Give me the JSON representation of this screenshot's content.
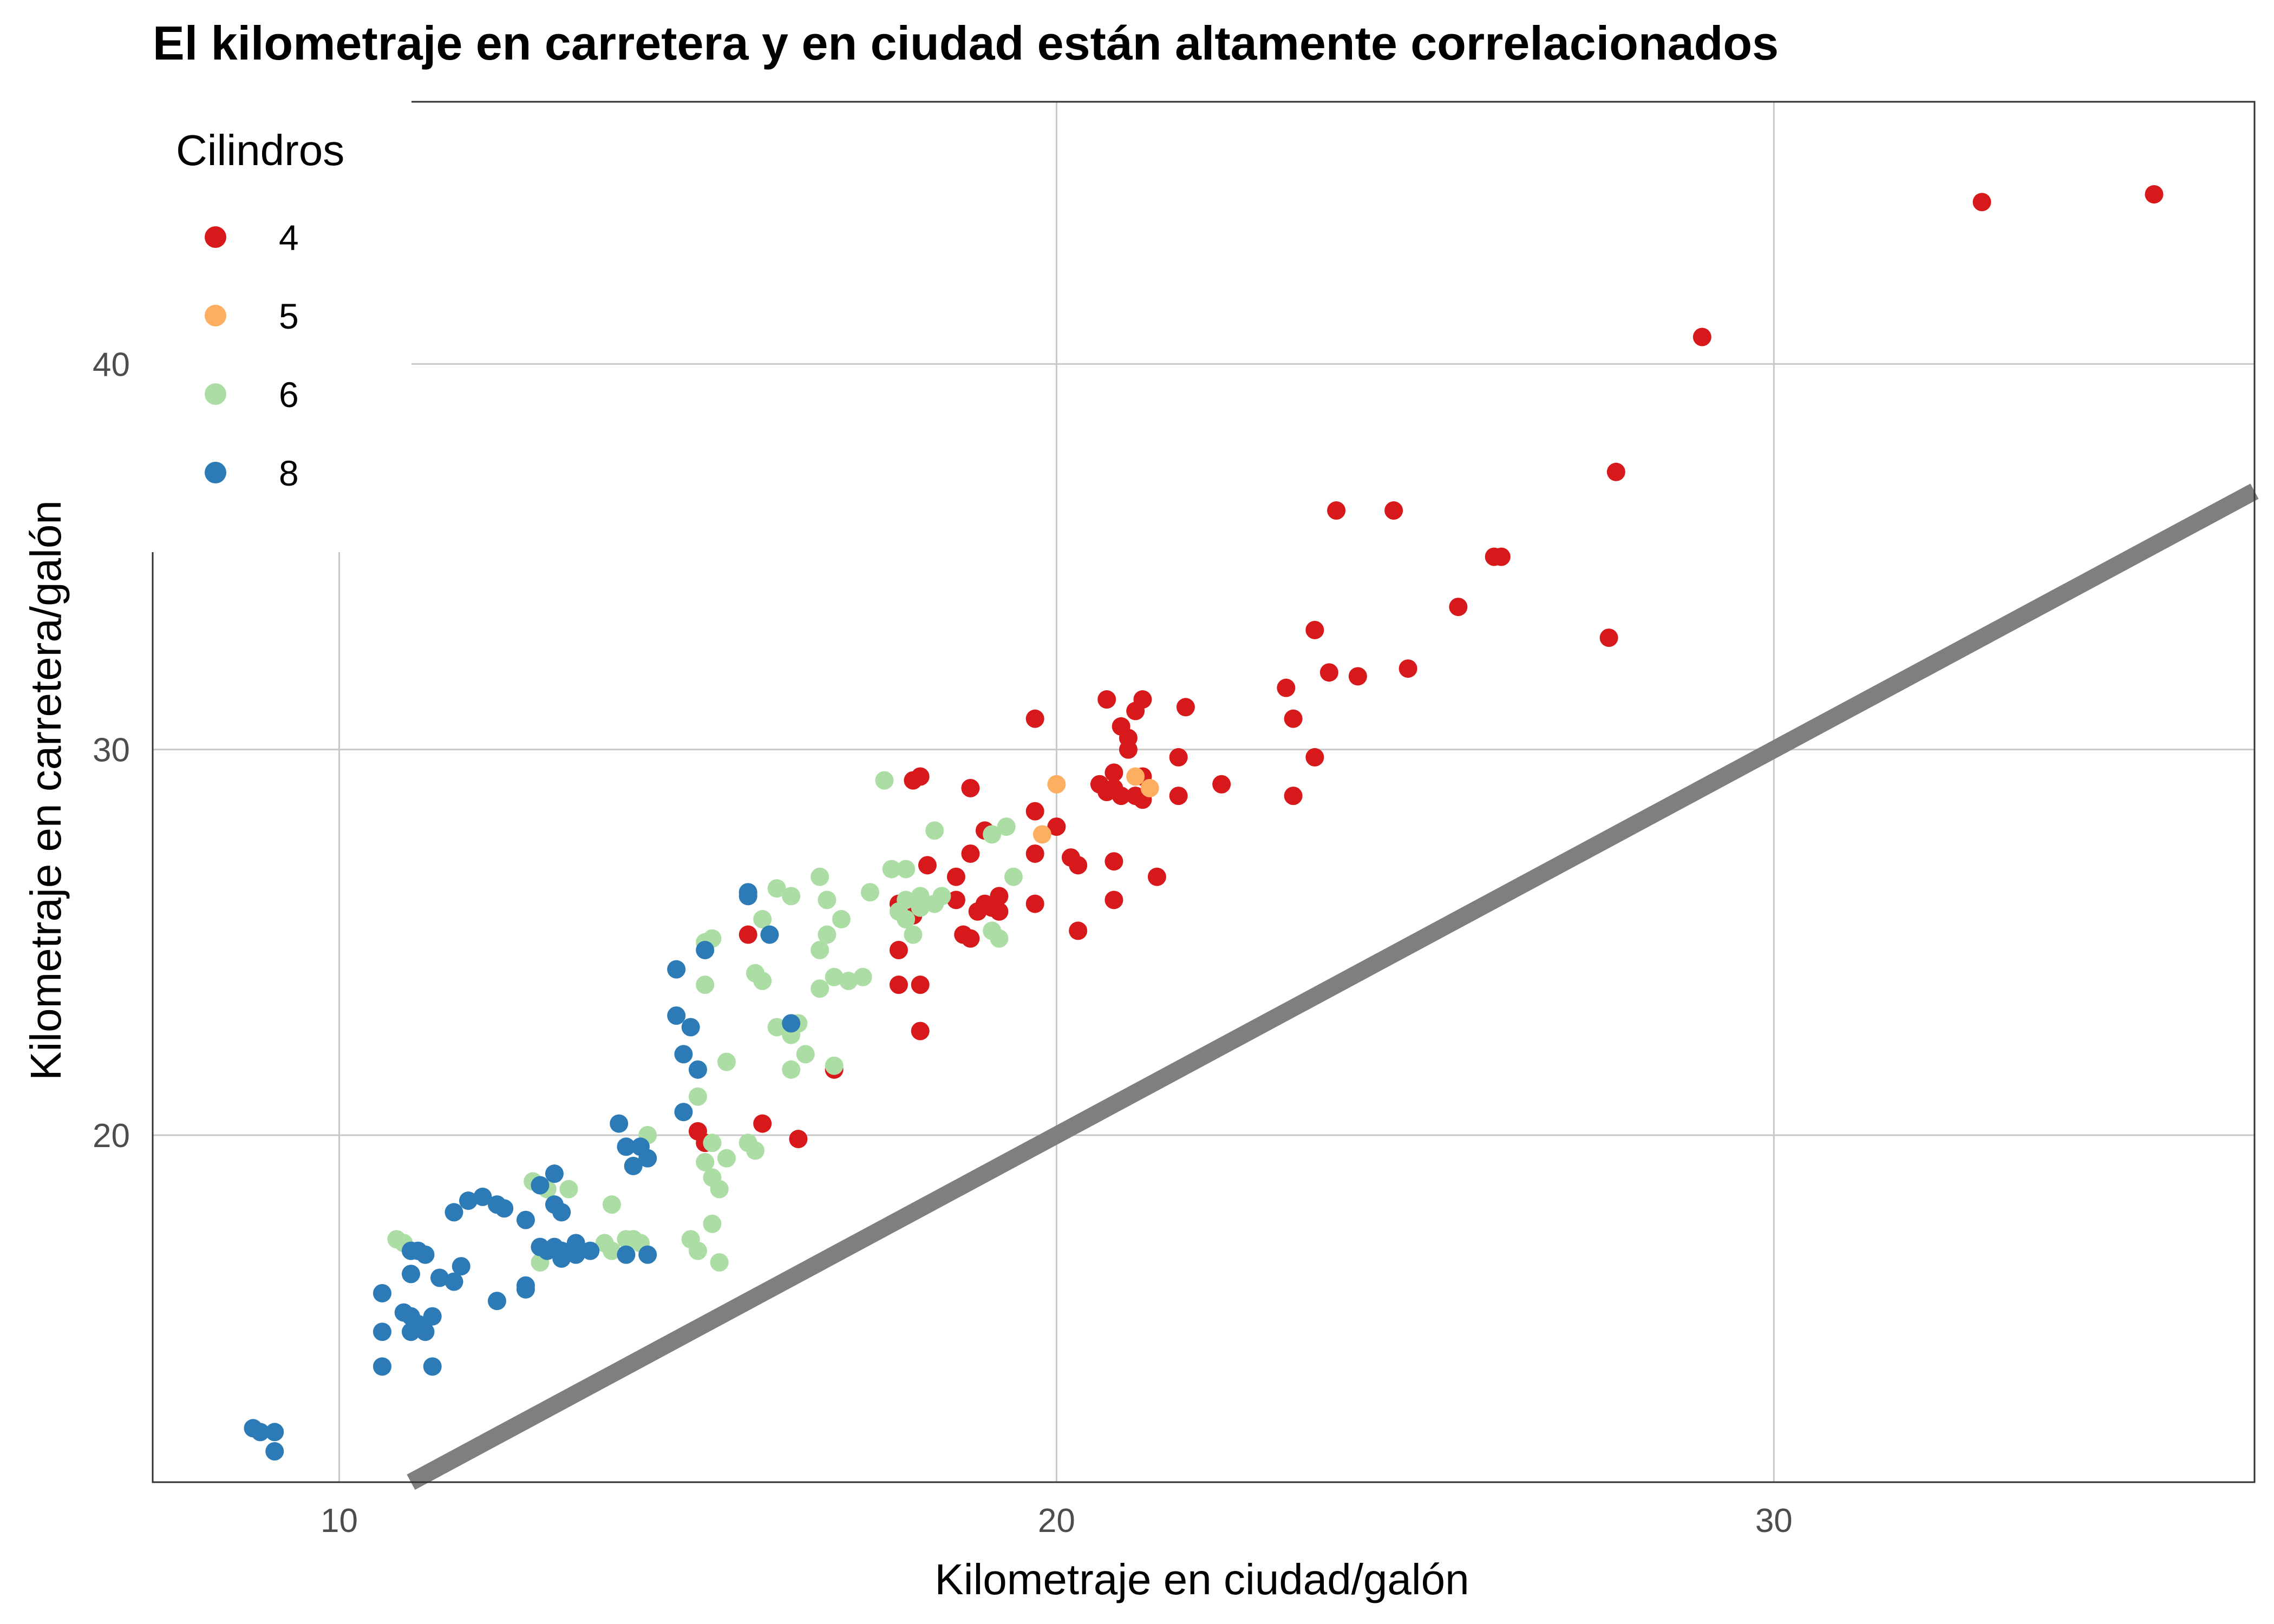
{
  "chart_data": {
    "type": "scatter",
    "title": "El kilometraje en carretera y en ciudad están altamente correlacionados",
    "xlabel": "Kilometraje en ciudad/galón",
    "ylabel": "Kilometraje en carretera/galón",
    "xlim": [
      7.4,
      36.7
    ],
    "ylim": [
      11.0,
      46.8
    ],
    "x_ticks": [
      10,
      20,
      30
    ],
    "y_ticks": [
      20,
      30,
      40
    ],
    "x_tick_labels": [
      "10",
      "20",
      "30"
    ],
    "y_tick_labels": [
      "20",
      "30",
      "40"
    ],
    "grid": true,
    "legend": {
      "title": "Cilindros",
      "position": "top-left"
    },
    "reference_line": {
      "slope": 1,
      "intercept": 0,
      "color": "#7f7f7f"
    },
    "series": [
      {
        "name": "4",
        "color": "#d7191c",
        "points": [
          [
            35.3,
            44.4
          ],
          [
            32.9,
            44.2
          ],
          [
            29.0,
            40.7
          ],
          [
            27.8,
            37.2
          ],
          [
            27.7,
            32.9
          ],
          [
            24.7,
            36.2
          ],
          [
            23.9,
            36.2
          ],
          [
            26.1,
            35.0
          ],
          [
            26.2,
            35.0
          ],
          [
            25.6,
            33.7
          ],
          [
            23.6,
            33.1
          ],
          [
            23.2,
            31.6
          ],
          [
            23.3,
            30.8
          ],
          [
            23.8,
            32.0
          ],
          [
            24.2,
            31.9
          ],
          [
            24.9,
            32.1
          ],
          [
            23.6,
            29.8
          ],
          [
            23.3,
            28.8
          ],
          [
            22.3,
            29.1
          ],
          [
            21.8,
            31.1
          ],
          [
            21.7,
            29.8
          ],
          [
            21.7,
            28.8
          ],
          [
            21.2,
            31.3
          ],
          [
            21.1,
            31.0
          ],
          [
            21.0,
            30.3
          ],
          [
            20.9,
            30.6
          ],
          [
            20.7,
            31.3
          ],
          [
            21.0,
            30.0
          ],
          [
            21.2,
            29.3
          ],
          [
            20.6,
            29.1
          ],
          [
            20.8,
            29.0
          ],
          [
            20.9,
            28.8
          ],
          [
            21.1,
            28.8
          ],
          [
            21.2,
            28.7
          ],
          [
            20.8,
            29.4
          ],
          [
            20.7,
            28.9
          ],
          [
            19.7,
            30.8
          ],
          [
            19.7,
            28.4
          ],
          [
            20.0,
            28.0
          ],
          [
            19.7,
            27.3
          ],
          [
            20.2,
            27.2
          ],
          [
            20.3,
            27.0
          ],
          [
            20.8,
            27.1
          ],
          [
            21.4,
            26.7
          ],
          [
            20.8,
            26.1
          ],
          [
            19.7,
            26.0
          ],
          [
            20.3,
            25.3
          ],
          [
            19.0,
            26.0
          ],
          [
            19.2,
            26.2
          ],
          [
            18.9,
            25.8
          ],
          [
            19.1,
            25.9
          ],
          [
            19.2,
            25.8
          ],
          [
            18.6,
            26.1
          ],
          [
            18.6,
            26.7
          ],
          [
            19.0,
            27.9
          ],
          [
            18.8,
            27.3
          ],
          [
            18.8,
            29.0
          ],
          [
            18.2,
            27.0
          ],
          [
            18.0,
            25.7
          ],
          [
            17.8,
            26.0
          ],
          [
            18.0,
            29.2
          ],
          [
            18.1,
            29.3
          ],
          [
            17.8,
            24.8
          ],
          [
            18.1,
            23.9
          ],
          [
            17.8,
            23.9
          ],
          [
            18.1,
            22.7
          ],
          [
            18.7,
            25.2
          ],
          [
            18.8,
            25.1
          ],
          [
            16.9,
            21.7
          ],
          [
            15.9,
            20.3
          ],
          [
            16.4,
            19.9
          ],
          [
            15.0,
            20.1
          ],
          [
            15.1,
            19.8
          ],
          [
            15.7,
            25.2
          ]
        ]
      },
      {
        "name": "5",
        "color": "#fdae61",
        "points": [
          [
            20.0,
            29.1
          ],
          [
            19.8,
            27.8
          ],
          [
            21.1,
            29.3
          ],
          [
            21.3,
            29.0
          ]
        ]
      },
      {
        "name": "6",
        "color": "#abdda4",
        "points": [
          [
            17.6,
            29.2
          ],
          [
            18.3,
            27.9
          ],
          [
            19.3,
            28.0
          ],
          [
            19.1,
            27.8
          ],
          [
            19.4,
            26.7
          ],
          [
            17.7,
            26.9
          ],
          [
            17.9,
            26.9
          ],
          [
            17.4,
            26.3
          ],
          [
            17.9,
            26.1
          ],
          [
            18.1,
            26.2
          ],
          [
            18.3,
            26.0
          ],
          [
            18.4,
            26.2
          ],
          [
            17.8,
            25.8
          ],
          [
            17.9,
            25.6
          ],
          [
            18.1,
            25.9
          ],
          [
            18.0,
            25.2
          ],
          [
            19.2,
            25.1
          ],
          [
            19.1,
            25.3
          ],
          [
            16.7,
            26.7
          ],
          [
            16.8,
            26.1
          ],
          [
            17.0,
            25.6
          ],
          [
            16.8,
            25.2
          ],
          [
            16.7,
            24.8
          ],
          [
            16.9,
            24.1
          ],
          [
            16.7,
            23.8
          ],
          [
            17.1,
            24.0
          ],
          [
            17.3,
            24.1
          ],
          [
            16.1,
            26.4
          ],
          [
            16.3,
            26.2
          ],
          [
            15.9,
            25.6
          ],
          [
            15.8,
            24.2
          ],
          [
            15.9,
            24.0
          ],
          [
            15.2,
            25.1
          ],
          [
            15.1,
            25.0
          ],
          [
            15.1,
            23.9
          ],
          [
            16.1,
            22.8
          ],
          [
            16.4,
            22.9
          ],
          [
            16.3,
            22.6
          ],
          [
            16.5,
            22.1
          ],
          [
            16.3,
            21.7
          ],
          [
            16.9,
            21.8
          ],
          [
            15.4,
            21.9
          ],
          [
            15.0,
            21.0
          ],
          [
            14.3,
            20.0
          ],
          [
            15.2,
            19.8
          ],
          [
            15.1,
            19.3
          ],
          [
            15.4,
            19.4
          ],
          [
            15.2,
            18.9
          ],
          [
            15.3,
            18.6
          ],
          [
            15.7,
            19.8
          ],
          [
            15.8,
            19.6
          ],
          [
            14.9,
            17.3
          ],
          [
            15.0,
            17.0
          ],
          [
            15.2,
            17.7
          ],
          [
            15.3,
            16.7
          ],
          [
            13.8,
            18.2
          ],
          [
            12.7,
            18.8
          ],
          [
            12.9,
            18.6
          ],
          [
            13.2,
            18.6
          ],
          [
            12.8,
            16.7
          ],
          [
            13.7,
            17.2
          ],
          [
            13.8,
            17.0
          ],
          [
            14.0,
            17.3
          ],
          [
            14.1,
            17.3
          ],
          [
            14.2,
            17.2
          ],
          [
            10.8,
            17.3
          ],
          [
            10.9,
            17.2
          ]
        ]
      },
      {
        "name": "8",
        "color": "#2c7bb6",
        "points": [
          [
            15.7,
            26.3
          ],
          [
            15.7,
            26.2
          ],
          [
            16.0,
            25.2
          ],
          [
            15.1,
            24.8
          ],
          [
            14.7,
            24.3
          ],
          [
            16.3,
            22.9
          ],
          [
            14.7,
            23.1
          ],
          [
            14.9,
            22.8
          ],
          [
            14.8,
            22.1
          ],
          [
            15.0,
            21.7
          ],
          [
            14.8,
            20.6
          ],
          [
            13.9,
            20.3
          ],
          [
            14.0,
            19.7
          ],
          [
            14.2,
            19.7
          ],
          [
            14.3,
            19.4
          ],
          [
            14.1,
            19.2
          ],
          [
            13.0,
            19.0
          ],
          [
            12.8,
            18.7
          ],
          [
            13.0,
            18.2
          ],
          [
            13.1,
            18.0
          ],
          [
            11.8,
            18.3
          ],
          [
            12.0,
            18.4
          ],
          [
            12.2,
            18.2
          ],
          [
            12.3,
            18.1
          ],
          [
            11.6,
            18.0
          ],
          [
            12.6,
            17.8
          ],
          [
            12.8,
            17.1
          ],
          [
            12.9,
            17.0
          ],
          [
            13.0,
            17.1
          ],
          [
            13.1,
            17.0
          ],
          [
            13.3,
            17.2
          ],
          [
            13.5,
            17.0
          ],
          [
            13.1,
            16.8
          ],
          [
            13.3,
            16.9
          ],
          [
            14.0,
            16.9
          ],
          [
            14.3,
            16.9
          ],
          [
            11.0,
            17.0
          ],
          [
            11.1,
            17.0
          ],
          [
            11.2,
            16.9
          ],
          [
            11.7,
            16.6
          ],
          [
            11.4,
            16.3
          ],
          [
            11.6,
            16.2
          ],
          [
            12.6,
            16.0
          ],
          [
            12.6,
            16.1
          ],
          [
            11.0,
            16.4
          ],
          [
            10.6,
            15.9
          ],
          [
            12.2,
            15.7
          ],
          [
            10.9,
            15.4
          ],
          [
            11.0,
            15.3
          ],
          [
            11.1,
            15.1
          ],
          [
            11.3,
            15.3
          ],
          [
            11.0,
            14.9
          ],
          [
            11.2,
            14.9
          ],
          [
            10.6,
            14.9
          ],
          [
            11.3,
            14.0
          ],
          [
            10.6,
            14.0
          ],
          [
            8.8,
            12.4
          ],
          [
            8.9,
            12.3
          ],
          [
            9.1,
            12.3
          ],
          [
            9.1,
            11.8
          ]
        ]
      }
    ]
  }
}
